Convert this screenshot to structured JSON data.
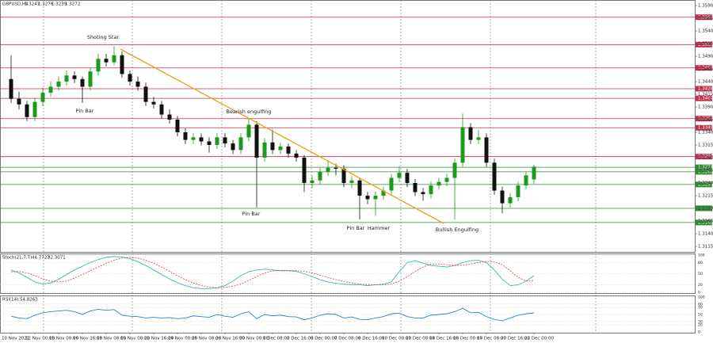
{
  "chart_data": [
    {
      "type": "candlestick",
      "title": "GBPUSD,H4",
      "categories": [
        "10 Nov 2021",
        null,
        null,
        "12 Nov 00:00",
        null,
        null,
        "15 Nov 00:00",
        null,
        null,
        "16 Nov 16:00",
        null,
        null,
        "18 Nov 08:00",
        null,
        null,
        "19 Nov 08:00",
        null,
        null,
        "22 Nov 16:00",
        null,
        null,
        "24 Nov 00:00",
        null,
        null,
        "25 Nov 08:00",
        null,
        null,
        "26 Nov 16:00",
        null,
        null,
        "30 Nov 00:00",
        null,
        null,
        "1 Dec 08:00",
        null,
        null,
        "2 Dec 16:00",
        null,
        null,
        "6 Dec 00:00",
        null,
        null,
        "7 Dec 08:00",
        null,
        null,
        "8 Dec 16:00",
        null,
        null,
        "10 Dec 00:00",
        null,
        null,
        "13 Dec 08:00",
        null,
        null,
        "14 Dec 16:00",
        null,
        null,
        "16 Dec 00:00",
        null,
        null,
        "17 Dec 08:00",
        null,
        null,
        "20 Dec 16:00",
        null,
        null,
        "22 Dec 00:00"
      ],
      "open": [
        1.3445,
        1.3406,
        1.3395,
        1.337,
        1.34,
        1.3418,
        1.343,
        1.344,
        1.3452,
        1.3445,
        1.343,
        1.346,
        1.3485,
        1.3478,
        1.3492,
        1.3455,
        1.344,
        1.343,
        1.34,
        1.3395,
        1.3375,
        1.3365,
        1.334,
        1.3325,
        1.333,
        1.3322,
        1.3315,
        1.333,
        1.3318,
        1.3305,
        1.333,
        1.3355,
        1.329,
        1.332,
        1.3305,
        1.3312,
        1.3298,
        1.329,
        1.324,
        1.3245,
        1.3262,
        1.327,
        1.3268,
        1.324,
        1.3245,
        1.3215,
        1.3208,
        1.3215,
        1.3225,
        1.325,
        1.326,
        1.324,
        1.3222,
        1.3218,
        1.3235,
        1.3242,
        1.325,
        1.328,
        1.335,
        1.3325,
        1.333,
        1.328,
        1.3225,
        1.32,
        1.3212,
        1.3235,
        1.3247
      ],
      "high": [
        1.3492,
        1.342,
        1.3402,
        1.3408,
        1.3428,
        1.344,
        1.345,
        1.3462,
        1.346,
        1.345,
        1.3468,
        1.3495,
        1.3495,
        1.351,
        1.35,
        1.3462,
        1.345,
        1.3438,
        1.341,
        1.3402,
        1.3385,
        1.3372,
        1.3348,
        1.3338,
        1.3338,
        1.333,
        1.3338,
        1.3338,
        1.3325,
        1.3338,
        1.3368,
        1.3362,
        1.3328,
        1.3345,
        1.332,
        1.3318,
        1.3305,
        1.3295,
        1.3255,
        1.327,
        1.3285,
        1.3278,
        1.3275,
        1.3253,
        1.325,
        1.3222,
        1.3223,
        1.3233,
        1.3258,
        1.3272,
        1.3268,
        1.3248,
        1.323,
        1.3243,
        1.325,
        1.3258,
        1.3288,
        1.3377,
        1.3358,
        1.3345,
        1.3338,
        1.3288,
        1.3233,
        1.322,
        1.3243,
        1.3263,
        1.3276
      ],
      "low": [
        1.3398,
        1.3385,
        1.3362,
        1.3362,
        1.3392,
        1.341,
        1.3422,
        1.3432,
        1.3437,
        1.3398,
        1.3422,
        1.3452,
        1.347,
        1.3472,
        1.3448,
        1.3432,
        1.3422,
        1.3392,
        1.3387,
        1.3367,
        1.3357,
        1.3332,
        1.3317,
        1.3317,
        1.3314,
        1.33,
        1.3307,
        1.331,
        1.3297,
        1.3297,
        1.3322,
        1.3192,
        1.3282,
        1.3297,
        1.3297,
        1.329,
        1.3282,
        1.3222,
        1.323,
        1.3237,
        1.3254,
        1.3255,
        1.3232,
        1.323,
        1.3168,
        1.3198,
        1.3175,
        1.3207,
        1.3217,
        1.3242,
        1.3232,
        1.3214,
        1.3205,
        1.321,
        1.3227,
        1.3234,
        1.3168,
        1.3272,
        1.3317,
        1.3317,
        1.3272,
        1.3217,
        1.318,
        1.3192,
        1.3204,
        1.3227,
        1.3239
      ],
      "close": [
        1.3406,
        1.3395,
        1.337,
        1.34,
        1.3418,
        1.343,
        1.344,
        1.3452,
        1.3445,
        1.343,
        1.346,
        1.3485,
        1.3478,
        1.3492,
        1.3455,
        1.344,
        1.343,
        1.34,
        1.3395,
        1.3375,
        1.3365,
        1.334,
        1.3325,
        1.333,
        1.3322,
        1.3315,
        1.333,
        1.3318,
        1.3305,
        1.333,
        1.3355,
        1.329,
        1.332,
        1.3305,
        1.3312,
        1.3298,
        1.329,
        1.324,
        1.3245,
        1.3262,
        1.327,
        1.3268,
        1.324,
        1.3245,
        1.3215,
        1.3208,
        1.3215,
        1.3225,
        1.325,
        1.326,
        1.324,
        1.3222,
        1.3218,
        1.3235,
        1.3242,
        1.325,
        1.328,
        1.335,
        1.3325,
        1.333,
        1.328,
        1.3225,
        1.32,
        1.3212,
        1.3235,
        1.3255,
        1.3272
      ],
      "up_color": "#1a9c1a",
      "down_color": "#111111",
      "ylim": [
        1.3104,
        1.3601
      ],
      "yticks": [
        {
          "value": 1.3115,
          "label": "1.3115"
        },
        {
          "value": 1.314,
          "label": "1.3140"
        },
        {
          "value": 1.3165,
          "label": "1.3165"
        },
        {
          "value": 1.319,
          "label": "1.3190"
        },
        {
          "value": 1.3215,
          "label": "1.3215"
        },
        {
          "value": 1.324,
          "label": "1.3240"
        },
        {
          "value": 1.3265,
          "label": "1.3265"
        },
        {
          "value": 1.329,
          "label": "1.3290"
        },
        {
          "value": 1.3315,
          "label": "1.3315"
        },
        {
          "value": 1.334,
          "label": "1.3340"
        },
        {
          "value": 1.3365,
          "label": "1.3365"
        },
        {
          "value": 1.339,
          "label": "1.3390"
        },
        {
          "value": 1.3415,
          "label": "1.3415"
        },
        {
          "value": 1.344,
          "label": "1.3440"
        },
        {
          "value": 1.3465,
          "label": "1.3465"
        },
        {
          "value": 1.349,
          "label": "1.3490"
        },
        {
          "value": 1.3515,
          "label": "1.3515"
        },
        {
          "value": 1.354,
          "label": "1.3540"
        },
        {
          "value": 1.3565,
          "label": "1.3565"
        },
        {
          "value": 1.359,
          "label": "1.3590"
        }
      ],
      "levels": [
        {
          "value": 1.3567,
          "label": "1.3567",
          "color": "#c0304a"
        },
        {
          "value": 1.3513,
          "label": "1.3513",
          "color": "#c0304a"
        },
        {
          "value": 1.3467,
          "label": "1.3467",
          "color": "#c0304a"
        },
        {
          "value": 1.3426,
          "label": "1.3426",
          "color": "#c0304a"
        },
        {
          "value": 1.3407,
          "label": "1.3407",
          "color": "#c0304a"
        },
        {
          "value": 1.3367,
          "label": "1.3367",
          "color": "#c0304a"
        },
        {
          "value": 1.3349,
          "label": "1.3349",
          "color": "#c0304a"
        },
        {
          "value": 1.3292,
          "label": "1.3292",
          "color": "#c0304a"
        },
        {
          "value": 1.3271,
          "label": "1.3271",
          "color": "#2e8b2e"
        },
        {
          "value": 1.3262,
          "label": "1.3262",
          "color": "#2e8b2e"
        },
        {
          "value": 1.3237,
          "label": "1.3237",
          "color": "#2e8b2e"
        },
        {
          "value": 1.319,
          "label": "1.3190",
          "color": "#2e8b2e"
        },
        {
          "value": 1.3162,
          "label": "1.3162",
          "color": "#2e8b2e"
        }
      ],
      "annotations": [
        "Shoting Star",
        "Pin Bar",
        "Bearish engulfing",
        "Pin Bar",
        "Pin Bar",
        "Hammer",
        "Bullish Engulfing"
      ]
    },
    {
      "type": "line",
      "title": "Stoch(21,7,7)",
      "series": [
        {
          "color": "#3fb6b0",
          "dash": false,
          "values": [
            60,
            52,
            40,
            28,
            22,
            25,
            35,
            48,
            60,
            70,
            80,
            88,
            94,
            96,
            95,
            90,
            82,
            72,
            60,
            48,
            36,
            26,
            18,
            12,
            10,
            10,
            12,
            18,
            30,
            45,
            55,
            60,
            62,
            60,
            58,
            58,
            56,
            50,
            42,
            34,
            28,
            24,
            22,
            20,
            20,
            18,
            20,
            22,
            28,
            55,
            80,
            85,
            78,
            72,
            70,
            68,
            72,
            80,
            85,
            86,
            80,
            60,
            35,
            18,
            20,
            30,
            44.7727
          ]
        },
        {
          "color": "#d9534f",
          "dash": true,
          "values": [
            55,
            56,
            52,
            45,
            36,
            30,
            28,
            30,
            38,
            48,
            58,
            68,
            78,
            86,
            92,
            94,
            92,
            86,
            78,
            68,
            56,
            44,
            34,
            25,
            18,
            14,
            12,
            13,
            16,
            22,
            32,
            42,
            52,
            57,
            59,
            59,
            58,
            56,
            52,
            46,
            40,
            34,
            29,
            25,
            22,
            21,
            20,
            20,
            22,
            30,
            42,
            56,
            68,
            76,
            76,
            74,
            72,
            73,
            76,
            80,
            83,
            82,
            74,
            58,
            40,
            30,
            32.3071
          ]
        }
      ],
      "ylim": [
        0,
        100
      ],
      "yticks": [
        0,
        20,
        50,
        80,
        100
      ]
    },
    {
      "type": "line",
      "title": "RSI(14)",
      "series": [
        {
          "color": "#2f7fd0",
          "dash": false,
          "values": [
            45,
            40,
            38,
            48,
            55,
            58,
            60,
            62,
            58,
            50,
            60,
            65,
            62,
            64,
            48,
            45,
            44,
            40,
            42,
            40,
            41,
            38,
            40,
            46,
            44,
            42,
            50,
            45,
            42,
            52,
            58,
            38,
            50,
            46,
            48,
            44,
            43,
            35,
            40,
            48,
            52,
            50,
            40,
            43,
            36,
            35,
            40,
            44,
            52,
            54,
            44,
            40,
            40,
            48,
            50,
            52,
            58,
            68,
            55,
            56,
            44,
            36,
            32,
            40,
            48,
            52,
            54.8263
          ]
        }
      ],
      "ylim": [
        0,
        100
      ],
      "yticks": [
        0,
        20,
        30,
        50,
        70,
        80,
        100
      ]
    }
  ]
}
